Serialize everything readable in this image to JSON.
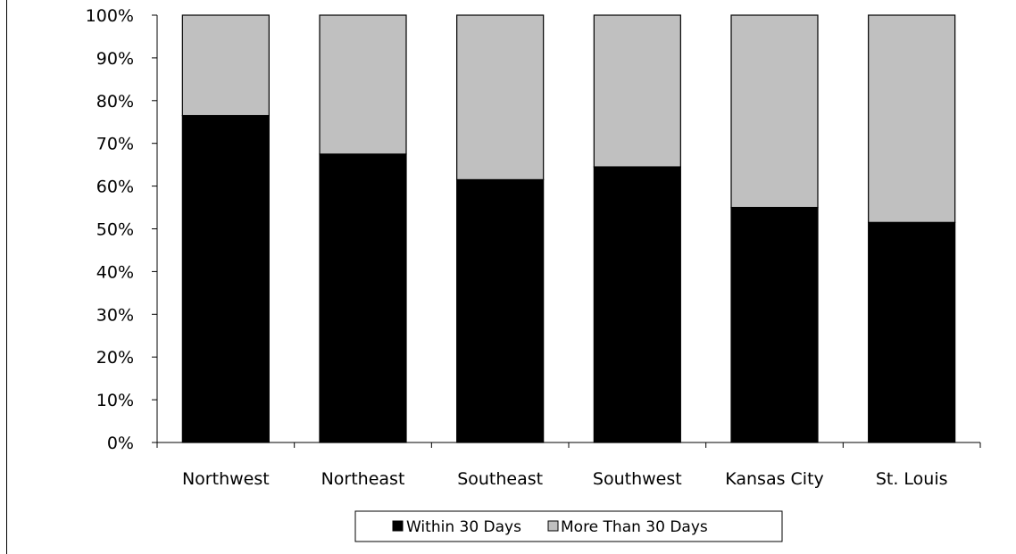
{
  "chart_data": {
    "type": "bar",
    "stacked": true,
    "percent_stacked": true,
    "categories": [
      "Northwest",
      "Northeast",
      "Southeast",
      "Southwest",
      "Kansas City",
      "St. Louis"
    ],
    "series": [
      {
        "name": "Within 30 Days",
        "values": [
          76.5,
          67.5,
          61.5,
          64.5,
          55,
          51.5
        ],
        "color": "#000000"
      },
      {
        "name": "More Than 30 Days",
        "values": [
          23.5,
          32.5,
          38.5,
          35.5,
          45,
          48.5
        ],
        "color": "#c0c0c0"
      }
    ],
    "ylim": [
      0,
      100
    ],
    "y_ticks": [
      "0%",
      "10%",
      "20%",
      "30%",
      "40%",
      "50%",
      "60%",
      "70%",
      "80%",
      "90%",
      "100%"
    ],
    "title": "",
    "xlabel": "",
    "ylabel": "",
    "grid": false,
    "legend_position": "bottom"
  }
}
